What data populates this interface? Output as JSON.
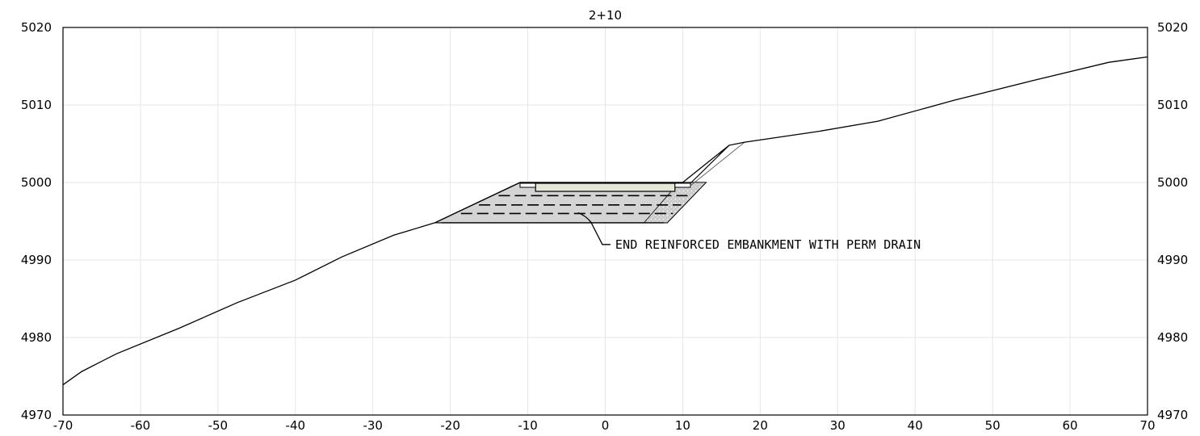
{
  "chart_data": {
    "type": "line",
    "title": "2+10",
    "xlabel": "",
    "ylabel": "",
    "xlim": [
      -70,
      70
    ],
    "ylim": [
      4970,
      5020
    ],
    "x_ticks": [
      "-70",
      "-60",
      "-50",
      "-40",
      "-30",
      "-20",
      "-10",
      "0",
      "10",
      "20",
      "30",
      "40",
      "50",
      "60",
      "70"
    ],
    "y_ticks_left": [
      "4970",
      "4980",
      "4990",
      "5000",
      "5010",
      "5020"
    ],
    "y_ticks_right": [
      "4970",
      "4980",
      "4990",
      "5000",
      "5010",
      "5020"
    ],
    "grid": true,
    "series": [
      {
        "points": [
          [
            -70,
            4973.9
          ],
          [
            -67.6,
            4975.6
          ],
          [
            -63.1,
            4977.9
          ],
          [
            -55,
            4981.2
          ],
          [
            -47.5,
            4984.5
          ],
          [
            -40,
            4987.4
          ],
          [
            -34,
            4990.4
          ],
          [
            -27.3,
            4993.2
          ],
          [
            -22,
            4994.8
          ],
          [
            -11,
            5000
          ],
          [
            10,
            5000
          ],
          [
            12.5,
            5002
          ],
          [
            16,
            5004.8
          ],
          [
            18,
            5005.2
          ],
          [
            27.6,
            5006.6
          ],
          [
            35.2,
            5007.9
          ],
          [
            45,
            5010.6
          ],
          [
            55,
            5013.1
          ],
          [
            65,
            5015.5
          ],
          [
            70,
            5016.2
          ]
        ]
      }
    ],
    "embankment": {
      "top_elevation": 5000,
      "base_elevation": 4994.8,
      "top_extent": [
        -11,
        13
      ],
      "base_extent": [
        -22,
        8
      ],
      "reinforcement_layers": [
        4994.8,
        4996,
        4997.1,
        4998.3
      ]
    },
    "annotations": [
      {
        "text": "END REINFORCED EMBANKMENT WITH PERM DRAIN",
        "x": -3.5,
        "y": 4996.1
      }
    ]
  }
}
